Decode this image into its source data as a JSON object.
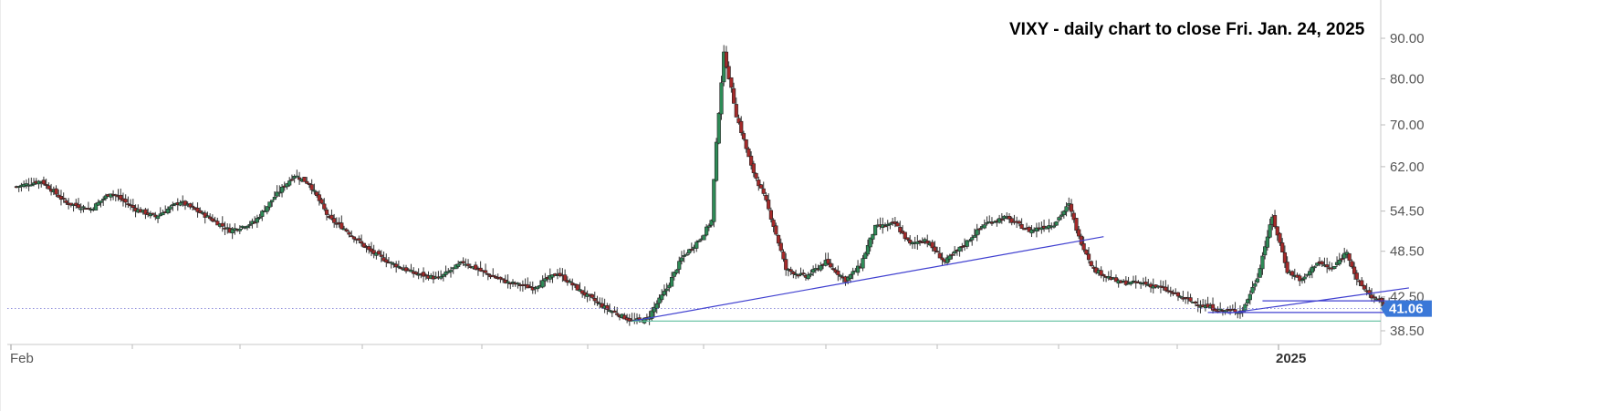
{
  "chart_data": {
    "type": "candlestick",
    "title": "VIXY - daily chart to close Fri. Jan. 24, 2025",
    "y_scale": "log",
    "ylim": [
      37.0,
      99.0
    ],
    "y_ticks": [
      "90.00",
      "80.00",
      "70.00",
      "62.00",
      "54.50",
      "48.50",
      "42.50",
      "38.50"
    ],
    "x_ticks": [
      {
        "label": "Feb",
        "bold": false
      },
      {
        "label": "2025",
        "bold": true
      }
    ],
    "last_price": "41.06",
    "colors": {
      "up": "#2e8b57",
      "down": "#a52a2a",
      "trendline": "#4040d0",
      "support": "#5fbf9f",
      "price_tag": "#3a78d8"
    },
    "price_path": [
      [
        0,
        58.5
      ],
      [
        10,
        59.5
      ],
      [
        20,
        55.8
      ],
      [
        30,
        54.8
      ],
      [
        38,
        57.5
      ],
      [
        48,
        54.8
      ],
      [
        56,
        53.6
      ],
      [
        66,
        56.0
      ],
      [
        76,
        53.8
      ],
      [
        86,
        51.5
      ],
      [
        96,
        52.8
      ],
      [
        104,
        56.8
      ],
      [
        112,
        60.5
      ],
      [
        118,
        59.0
      ],
      [
        126,
        53.3
      ],
      [
        132,
        51.8
      ],
      [
        142,
        48.6
      ],
      [
        150,
        47.0
      ],
      [
        160,
        45.5
      ],
      [
        170,
        44.8
      ],
      [
        180,
        47.0
      ],
      [
        190,
        45.3
      ],
      [
        198,
        44.3
      ],
      [
        208,
        43.6
      ],
      [
        218,
        45.5
      ],
      [
        228,
        43.0
      ],
      [
        238,
        41.0
      ],
      [
        248,
        39.6
      ],
      [
        254,
        39.8
      ],
      [
        262,
        43.5
      ],
      [
        268,
        47.5
      ],
      [
        276,
        50.5
      ],
      [
        280,
        53.0
      ],
      [
        285,
        86.0
      ],
      [
        290,
        72.0
      ],
      [
        296,
        62.0
      ],
      [
        302,
        56.0
      ],
      [
        310,
        46.0
      ],
      [
        318,
        45.0
      ],
      [
        326,
        47.0
      ],
      [
        334,
        44.6
      ],
      [
        340,
        46.5
      ],
      [
        346,
        52.0
      ],
      [
        354,
        52.5
      ],
      [
        360,
        49.5
      ],
      [
        366,
        50.2
      ],
      [
        374,
        47.0
      ],
      [
        382,
        49.5
      ],
      [
        390,
        52.5
      ],
      [
        398,
        53.5
      ],
      [
        408,
        51.5
      ],
      [
        418,
        52.5
      ],
      [
        424,
        55.5
      ],
      [
        428,
        50.5
      ],
      [
        434,
        46.0
      ],
      [
        444,
        44.3
      ],
      [
        454,
        44.2
      ],
      [
        462,
        43.5
      ],
      [
        470,
        42.3
      ],
      [
        478,
        41.4
      ],
      [
        486,
        40.8
      ],
      [
        494,
        40.8
      ],
      [
        500,
        45.0
      ],
      [
        506,
        53.5
      ],
      [
        512,
        45.8
      ],
      [
        518,
        44.5
      ],
      [
        524,
        47.0
      ],
      [
        530,
        46.0
      ],
      [
        536,
        48.5
      ],
      [
        540,
        44.5
      ],
      [
        546,
        42.5
      ],
      [
        551,
        41.5
      ],
      [
        556,
        41.2
      ]
    ],
    "trendlines": [
      {
        "from": [
          248,
          39.6
        ],
        "to": [
          438,
          50.6
        ]
      },
      {
        "from": [
          488,
          40.5
        ],
        "to": [
          561,
          43.6
        ]
      },
      {
        "from": [
          502,
          42.0
        ],
        "to": [
          561,
          42.0
        ]
      },
      {
        "from": [
          480,
          40.6
        ],
        "to": [
          561,
          40.6
        ]
      }
    ],
    "support_line": 39.6,
    "dotted_level": 41.06
  }
}
